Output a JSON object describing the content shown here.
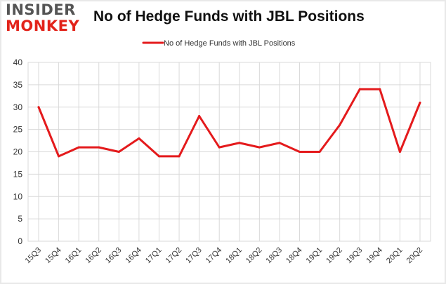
{
  "logo": {
    "line1": "INSIDER",
    "line2": "MONKEY"
  },
  "colors": {
    "series": "#e41a1c",
    "grid": "#d9d9d9",
    "text": "#333333",
    "brand": "#e2231a"
  },
  "chart_data": {
    "type": "line",
    "title": "No of Hedge Funds with JBL Positions",
    "xlabel": "",
    "ylabel": "",
    "categories": [
      "15Q3",
      "15Q4",
      "16Q1",
      "16Q2",
      "16Q3",
      "16Q4",
      "17Q1",
      "17Q2",
      "17Q3",
      "17Q4",
      "18Q1",
      "18Q2",
      "18Q3",
      "18Q4",
      "19Q1",
      "19Q2",
      "19Q3",
      "19Q4",
      "20Q1",
      "20Q2"
    ],
    "series": [
      {
        "name": "No of Hedge Funds with JBL Positions",
        "values": [
          30,
          19,
          21,
          21,
          20,
          23,
          19,
          19,
          28,
          21,
          22,
          21,
          22,
          20,
          20,
          26,
          34,
          34,
          20,
          31
        ]
      }
    ],
    "ylim": [
      0,
      40
    ],
    "yticks": [
      0,
      5,
      10,
      15,
      20,
      25,
      30,
      35,
      40
    ],
    "grid": true,
    "legend": "top-center"
  }
}
